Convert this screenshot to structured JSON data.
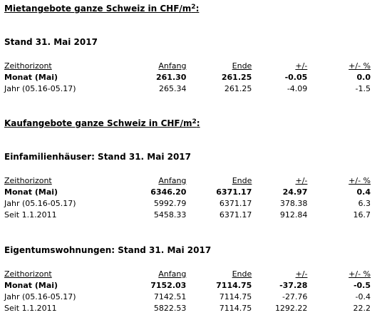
{
  "rent": {
    "title_prefix": "Mietangebote ganze Schweiz in CHF/m",
    "title_sup": "2",
    "title_suffix": ":",
    "stand": "Stand 31. Mai 2017",
    "headers": [
      "Zeithorizont",
      "Anfang",
      "Ende",
      "+/-",
      "+/- %"
    ],
    "rows": [
      {
        "label": "Monat (Mai)",
        "anfang": "261.30",
        "ende": "261.25",
        "diff": "-0.05",
        "pct": "0.0",
        "bold": true
      },
      {
        "label": "Jahr (05.16-05.17)",
        "anfang": "265.34",
        "ende": "261.25",
        "diff": "-4.09",
        "pct": "-1.5",
        "bold": false
      }
    ]
  },
  "buy": {
    "title_prefix": "Kaufangebote ganze Schweiz in CHF/m",
    "title_sup": "2",
    "title_suffix": ":"
  },
  "houses": {
    "stand": "Einfamilienhäuser: Stand 31. Mai 2017",
    "headers": [
      "Zeithorizont",
      "Anfang",
      "Ende",
      "+/-",
      "+/- %"
    ],
    "rows": [
      {
        "label": "Monat (Mai)",
        "anfang": "6346.20",
        "ende": "6371.17",
        "diff": "24.97",
        "pct": "0.4",
        "bold": true
      },
      {
        "label": "Jahr (05.16-05.17)",
        "anfang": "5992.79",
        "ende": "6371.17",
        "diff": "378.38",
        "pct": "6.3",
        "bold": false
      },
      {
        "label": "Seit 1.1.2011",
        "anfang": "5458.33",
        "ende": "6371.17",
        "diff": "912.84",
        "pct": "16.7",
        "bold": false
      }
    ]
  },
  "apartments": {
    "stand": "Eigentumswohnungen: Stand 31. Mai 2017",
    "headers": [
      "Zeithorizont",
      "Anfang",
      "Ende",
      "+/-",
      "+/- %"
    ],
    "rows": [
      {
        "label": "Monat (Mai)",
        "anfang": "7152.03",
        "ende": "7114.75",
        "diff": "-37.28",
        "pct": "-0.5",
        "bold": true
      },
      {
        "label": "Jahr (05.16-05.17)",
        "anfang": "7142.51",
        "ende": "7114.75",
        "diff": "-27.76",
        "pct": "-0.4",
        "bold": false
      },
      {
        "label": "Seit 1.1.2011",
        "anfang": "5822.53",
        "ende": "7114.75",
        "diff": "1292.22",
        "pct": "22.2",
        "bold": false
      }
    ]
  }
}
